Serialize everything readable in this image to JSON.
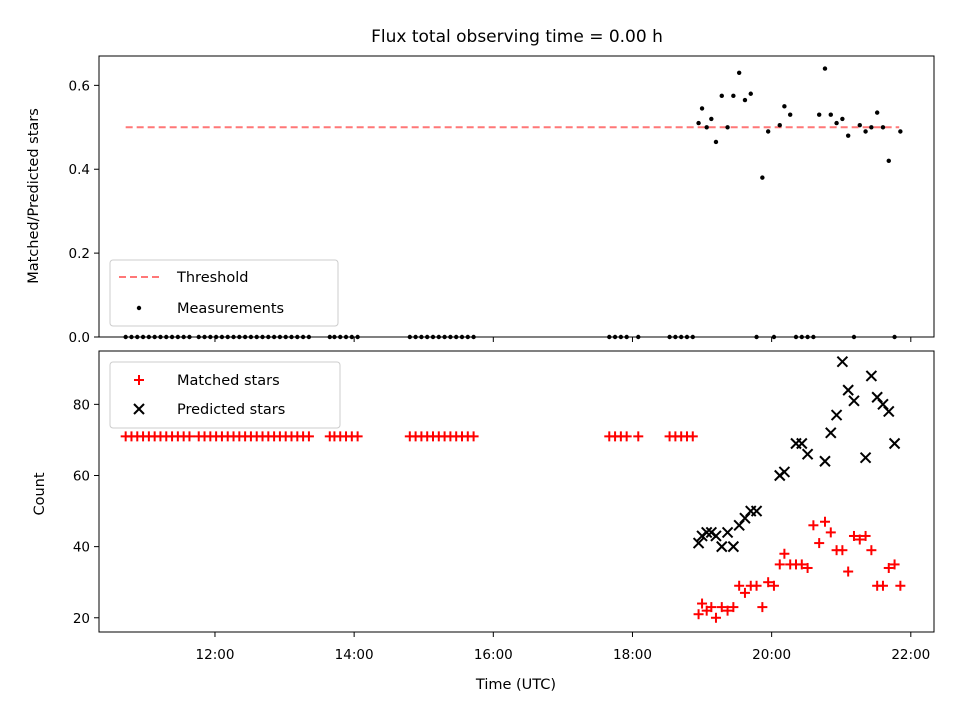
{
  "title": "Flux total observing time = 0.00 h",
  "colors": {
    "threshold": "#ff7777",
    "measurements": "#000000",
    "matched": "#ff0000",
    "predicted": "#000000"
  },
  "chart_data": [
    {
      "type": "scatter",
      "panel": "top",
      "ylabel": "Matched/Predicted stars",
      "xlabel": "",
      "xlim": [
        "10:20",
        "22:20"
      ],
      "ylim": [
        0,
        0.67
      ],
      "y_ticks": [
        "0.0",
        "0.2",
        "0.4",
        "0.6"
      ],
      "y_tick_values": [
        0,
        0.2,
        0.4,
        0.6
      ],
      "legend": {
        "location": "lower-left",
        "entries": [
          {
            "label": "Threshold",
            "marker": "dashed-line",
            "color": "#ff7777"
          },
          {
            "label": "Measurements",
            "marker": "dot",
            "color": "#000000"
          }
        ]
      },
      "threshold": {
        "name": "Threshold",
        "value": 0.5,
        "x_start": "10:43",
        "x_end": "21:50"
      },
      "series": [
        {
          "name": "Measurements",
          "marker": "dot",
          "x": [
            "10:43",
            "10:48",
            "10:53",
            "10:58",
            "11:03",
            "11:08",
            "11:13",
            "11:18",
            "11:23",
            "11:28",
            "11:33",
            "11:38",
            "11:46",
            "11:51",
            "11:56",
            "12:01",
            "12:06",
            "12:11",
            "12:16",
            "12:21",
            "12:26",
            "12:31",
            "12:36",
            "12:41",
            "12:46",
            "12:51",
            "12:56",
            "13:01",
            "13:06",
            "13:11",
            "13:16",
            "13:21",
            "13:39",
            "13:43",
            "13:48",
            "13:53",
            "13:58",
            "14:03",
            "14:48",
            "14:53",
            "14:58",
            "15:03",
            "15:08",
            "15:13",
            "15:18",
            "15:23",
            "15:28",
            "15:33",
            "15:38",
            "15:43",
            "17:40",
            "17:45",
            "17:50",
            "17:55",
            "18:05",
            "18:32",
            "18:37",
            "18:42",
            "18:47",
            "18:52",
            "18:57",
            "19:00",
            "19:04",
            "19:08",
            "19:12",
            "19:17",
            "19:22",
            "19:27",
            "19:32",
            "19:37",
            "19:42",
            "19:47",
            "19:52",
            "19:57",
            "20:02",
            "20:07",
            "20:11",
            "20:16",
            "20:21",
            "20:26",
            "20:31",
            "20:36",
            "20:41",
            "20:46",
            "20:51",
            "20:56",
            "21:01",
            "21:06",
            "21:11",
            "21:16",
            "21:21",
            "21:26",
            "21:31",
            "21:36",
            "21:41",
            "21:46",
            "21:51"
          ],
          "y": [
            0,
            0,
            0,
            0,
            0,
            0,
            0,
            0,
            0,
            0,
            0,
            0,
            0,
            0,
            0,
            0,
            0,
            0,
            0,
            0,
            0,
            0,
            0,
            0,
            0,
            0,
            0,
            0,
            0,
            0,
            0,
            0,
            0,
            0,
            0,
            0,
            0,
            0,
            0,
            0,
            0,
            0,
            0,
            0,
            0,
            0,
            0,
            0,
            0,
            0,
            0,
            0,
            0,
            0,
            0,
            0,
            0,
            0,
            0,
            0,
            0.51,
            0.545,
            0.5,
            0.52,
            0.465,
            0.575,
            0.5,
            0.575,
            0.63,
            0.565,
            0.58,
            0,
            0.38,
            0.49,
            0,
            0.505,
            0.55,
            0.53,
            0,
            0,
            0,
            0,
            0.53,
            0.64,
            0.53,
            0.51,
            0.52,
            0.48,
            0,
            0.505,
            0.49,
            0.5,
            0.535,
            0.5,
            0.42,
            0,
            0.49
          ]
        }
      ]
    },
    {
      "type": "scatter",
      "panel": "bottom",
      "ylabel": "Count",
      "xlabel": "Time (UTC)",
      "xlim": [
        "10:20",
        "22:20"
      ],
      "ylim": [
        16,
        95
      ],
      "x_ticks": [
        "12:00",
        "14:00",
        "16:00",
        "18:00",
        "20:00",
        "22:00"
      ],
      "y_ticks": [
        "20",
        "40",
        "60",
        "80"
      ],
      "y_tick_values": [
        20,
        40,
        60,
        80
      ],
      "legend": {
        "location": "upper-left",
        "entries": [
          {
            "label": "Matched stars",
            "marker": "plus",
            "color": "#ff0000"
          },
          {
            "label": "Predicted stars",
            "marker": "x",
            "color": "#000000"
          }
        ]
      },
      "series": [
        {
          "name": "Matched stars",
          "marker": "plus",
          "x": [
            "10:43",
            "10:48",
            "10:53",
            "10:58",
            "11:03",
            "11:08",
            "11:13",
            "11:18",
            "11:23",
            "11:28",
            "11:33",
            "11:38",
            "11:46",
            "11:51",
            "11:56",
            "12:01",
            "12:06",
            "12:11",
            "12:16",
            "12:21",
            "12:26",
            "12:31",
            "12:36",
            "12:41",
            "12:46",
            "12:51",
            "12:56",
            "13:01",
            "13:06",
            "13:11",
            "13:16",
            "13:21",
            "13:39",
            "13:43",
            "13:48",
            "13:53",
            "13:58",
            "14:03",
            "14:48",
            "14:53",
            "14:58",
            "15:03",
            "15:08",
            "15:13",
            "15:18",
            "15:23",
            "15:28",
            "15:33",
            "15:38",
            "15:43",
            "17:40",
            "17:45",
            "17:50",
            "17:55",
            "18:05",
            "18:32",
            "18:37",
            "18:42",
            "18:47",
            "18:52",
            "18:57",
            "19:00",
            "19:04",
            "19:08",
            "19:12",
            "19:17",
            "19:22",
            "19:27",
            "19:32",
            "19:37",
            "19:42",
            "19:47",
            "19:52",
            "19:57",
            "20:02",
            "20:07",
            "20:11",
            "20:16",
            "20:21",
            "20:26",
            "20:31",
            "20:36",
            "20:41",
            "20:46",
            "20:51",
            "20:56",
            "21:01",
            "21:06",
            "21:11",
            "21:16",
            "21:21",
            "21:26",
            "21:31",
            "21:36",
            "21:41",
            "21:46",
            "21:51"
          ],
          "y": [
            71,
            71,
            71,
            71,
            71,
            71,
            71,
            71,
            71,
            71,
            71,
            71,
            71,
            71,
            71,
            71,
            71,
            71,
            71,
            71,
            71,
            71,
            71,
            71,
            71,
            71,
            71,
            71,
            71,
            71,
            71,
            71,
            71,
            71,
            71,
            71,
            71,
            71,
            71,
            71,
            71,
            71,
            71,
            71,
            71,
            71,
            71,
            71,
            71,
            71,
            71,
            71,
            71,
            71,
            71,
            71,
            71,
            71,
            71,
            71,
            21,
            24,
            22,
            23,
            20,
            23,
            22,
            23,
            29,
            27,
            29,
            29,
            23,
            30,
            29,
            35,
            38,
            35,
            35,
            35,
            34,
            46,
            41,
            47,
            44,
            39,
            39,
            33,
            43,
            42,
            43,
            39,
            29,
            29,
            34,
            35,
            29
          ]
        },
        {
          "name": "Predicted stars",
          "marker": "x",
          "x": [
            "18:57",
            "19:00",
            "19:04",
            "19:08",
            "19:12",
            "19:17",
            "19:22",
            "19:27",
            "19:32",
            "19:37",
            "19:42",
            "19:47",
            "20:07",
            "20:11",
            "20:21",
            "20:26",
            "20:31",
            "20:46",
            "20:51",
            "20:56",
            "21:01",
            "21:06",
            "21:11",
            "21:21",
            "21:26",
            "21:31",
            "21:36",
            "21:41",
            "21:46"
          ],
          "y": [
            41,
            43,
            44,
            44,
            43,
            40,
            44,
            40,
            46,
            48,
            50,
            50,
            60,
            61,
            69,
            69,
            66,
            64,
            72,
            77,
            92,
            84,
            81,
            65,
            88,
            82,
            80,
            78,
            69
          ]
        }
      ]
    }
  ]
}
